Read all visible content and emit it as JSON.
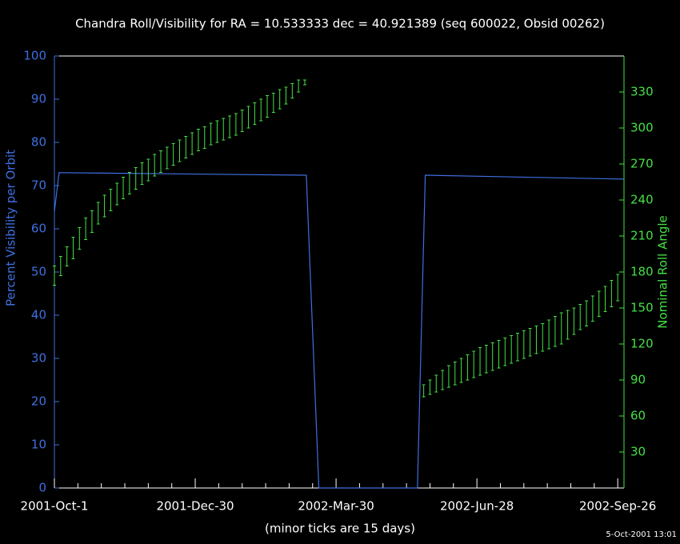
{
  "chart_data": {
    "type": "line",
    "title": "Chandra Roll/Visibility for RA = 10.533333 dec = 40.921389 (seq 600022, Obsid 00262)",
    "xlabel": "(minor ticks are 15 days)",
    "ylabel": "Percent Visibility per Orbit",
    "y2label": "Nominal Roll Angle",
    "timestamp": "5-Oct-2001 13:01",
    "xlim": [
      "2001-10-01",
      "2002-09-30"
    ],
    "xticks": [
      {
        "value": "2001-10-01",
        "label": "2001-Oct-1"
      },
      {
        "value": "2001-12-30",
        "label": "2001-Dec-30"
      },
      {
        "value": "2002-03-30",
        "label": "2002-Mar-30"
      },
      {
        "value": "2002-06-28",
        "label": "2002-Jun-28"
      },
      {
        "value": "2002-09-26",
        "label": "2002-Sep-26"
      }
    ],
    "xminorticks": [
      "2001-10-16",
      "2001-10-31",
      "2001-11-15",
      "2001-11-30",
      "2001-12-15",
      "2002-01-14",
      "2002-01-29",
      "2002-02-13",
      "2002-02-28",
      "2002-03-15",
      "2002-04-14",
      "2002-04-29",
      "2002-05-14",
      "2002-05-29",
      "2002-06-13",
      "2002-07-13",
      "2002-07-28",
      "2002-08-12",
      "2002-08-27",
      "2002-09-11"
    ],
    "ylim": [
      0,
      100
    ],
    "yticks": [
      0,
      10,
      20,
      30,
      40,
      50,
      60,
      70,
      80,
      90,
      100
    ],
    "y2lim": [
      0,
      360
    ],
    "y2ticks": [
      30,
      60,
      90,
      120,
      150,
      180,
      210,
      240,
      270,
      300,
      330
    ],
    "ycolor": "#3f6fe0",
    "y2color": "#44e044",
    "series": [
      {
        "type": "line",
        "color": "#3f6fe0",
        "x": [
          "2001-10-01",
          "2001-10-04",
          "2002-03-11",
          "2002-03-19",
          "2002-05-21",
          "2002-05-26",
          "2002-09-30"
        ],
        "values": [
          64,
          73,
          72.4,
          0,
          0,
          72.4,
          71.5
        ]
      },
      {
        "type": "range",
        "axis": "y2",
        "color": "#44e044",
        "x": [
          "2001-10-01",
          "2001-10-05",
          "2001-10-09",
          "2001-10-13",
          "2001-10-17",
          "2001-10-21",
          "2001-10-25",
          "2001-10-29",
          "2001-11-02",
          "2001-11-06",
          "2001-11-10",
          "2001-11-14",
          "2001-11-18",
          "2001-11-22",
          "2001-11-26",
          "2001-11-30",
          "2001-12-04",
          "2001-12-08",
          "2001-12-12",
          "2001-12-16",
          "2001-12-20",
          "2001-12-24",
          "2001-12-28",
          "2002-01-01",
          "2002-01-05",
          "2002-01-09",
          "2002-01-13",
          "2002-01-17",
          "2002-01-21",
          "2002-01-25",
          "2002-01-29",
          "2002-02-02",
          "2002-02-06",
          "2002-02-10",
          "2002-02-14",
          "2002-02-18",
          "2002-02-22",
          "2002-02-26",
          "2002-03-02",
          "2002-03-06",
          "2002-03-10",
          "2002-05-25",
          "2002-05-29",
          "2002-06-02",
          "2002-06-06",
          "2002-06-10",
          "2002-06-14",
          "2002-06-18",
          "2002-06-22",
          "2002-06-26",
          "2002-06-30",
          "2002-07-04",
          "2002-07-08",
          "2002-07-12",
          "2002-07-16",
          "2002-07-20",
          "2002-07-24",
          "2002-07-28",
          "2002-08-01",
          "2002-08-05",
          "2002-08-09",
          "2002-08-13",
          "2002-08-17",
          "2002-08-21",
          "2002-08-25",
          "2002-08-29",
          "2002-09-02",
          "2002-09-06",
          "2002-09-10",
          "2002-09-14",
          "2002-09-18",
          "2002-09-22",
          "2002-09-26"
        ],
        "low": [
          169,
          177,
          185,
          191,
          199,
          207,
          213,
          220,
          226,
          231,
          236,
          241,
          245,
          249,
          253,
          256,
          260,
          263,
          266,
          269,
          272,
          275,
          278,
          281,
          283,
          286,
          288,
          290,
          292,
          294,
          297,
          300,
          303,
          306,
          309,
          313,
          316,
          320,
          325,
          330,
          336,
          76,
          78,
          80,
          82,
          84,
          86,
          88,
          90,
          92,
          94,
          96,
          98,
          100,
          102,
          104,
          106,
          108,
          110,
          112,
          114,
          116,
          118,
          120,
          124,
          128,
          132,
          135,
          139,
          143,
          147,
          151,
          156
        ],
        "high": [
          185,
          193,
          201,
          209,
          217,
          225,
          231,
          238,
          244,
          249,
          254,
          259,
          263,
          267,
          271,
          274,
          278,
          281,
          284,
          287,
          290,
          293,
          296,
          299,
          301,
          304,
          306,
          308,
          310,
          312,
          315,
          318,
          321,
          324,
          327,
          329,
          332,
          334,
          337,
          340,
          340,
          86,
          90,
          94,
          98,
          102,
          105,
          108,
          111,
          114,
          117,
          119,
          121,
          123,
          125,
          127,
          129,
          131,
          133,
          135,
          137,
          140,
          143,
          146,
          148,
          150,
          153,
          156,
          160,
          164,
          168,
          173,
          178
        ]
      }
    ]
  }
}
